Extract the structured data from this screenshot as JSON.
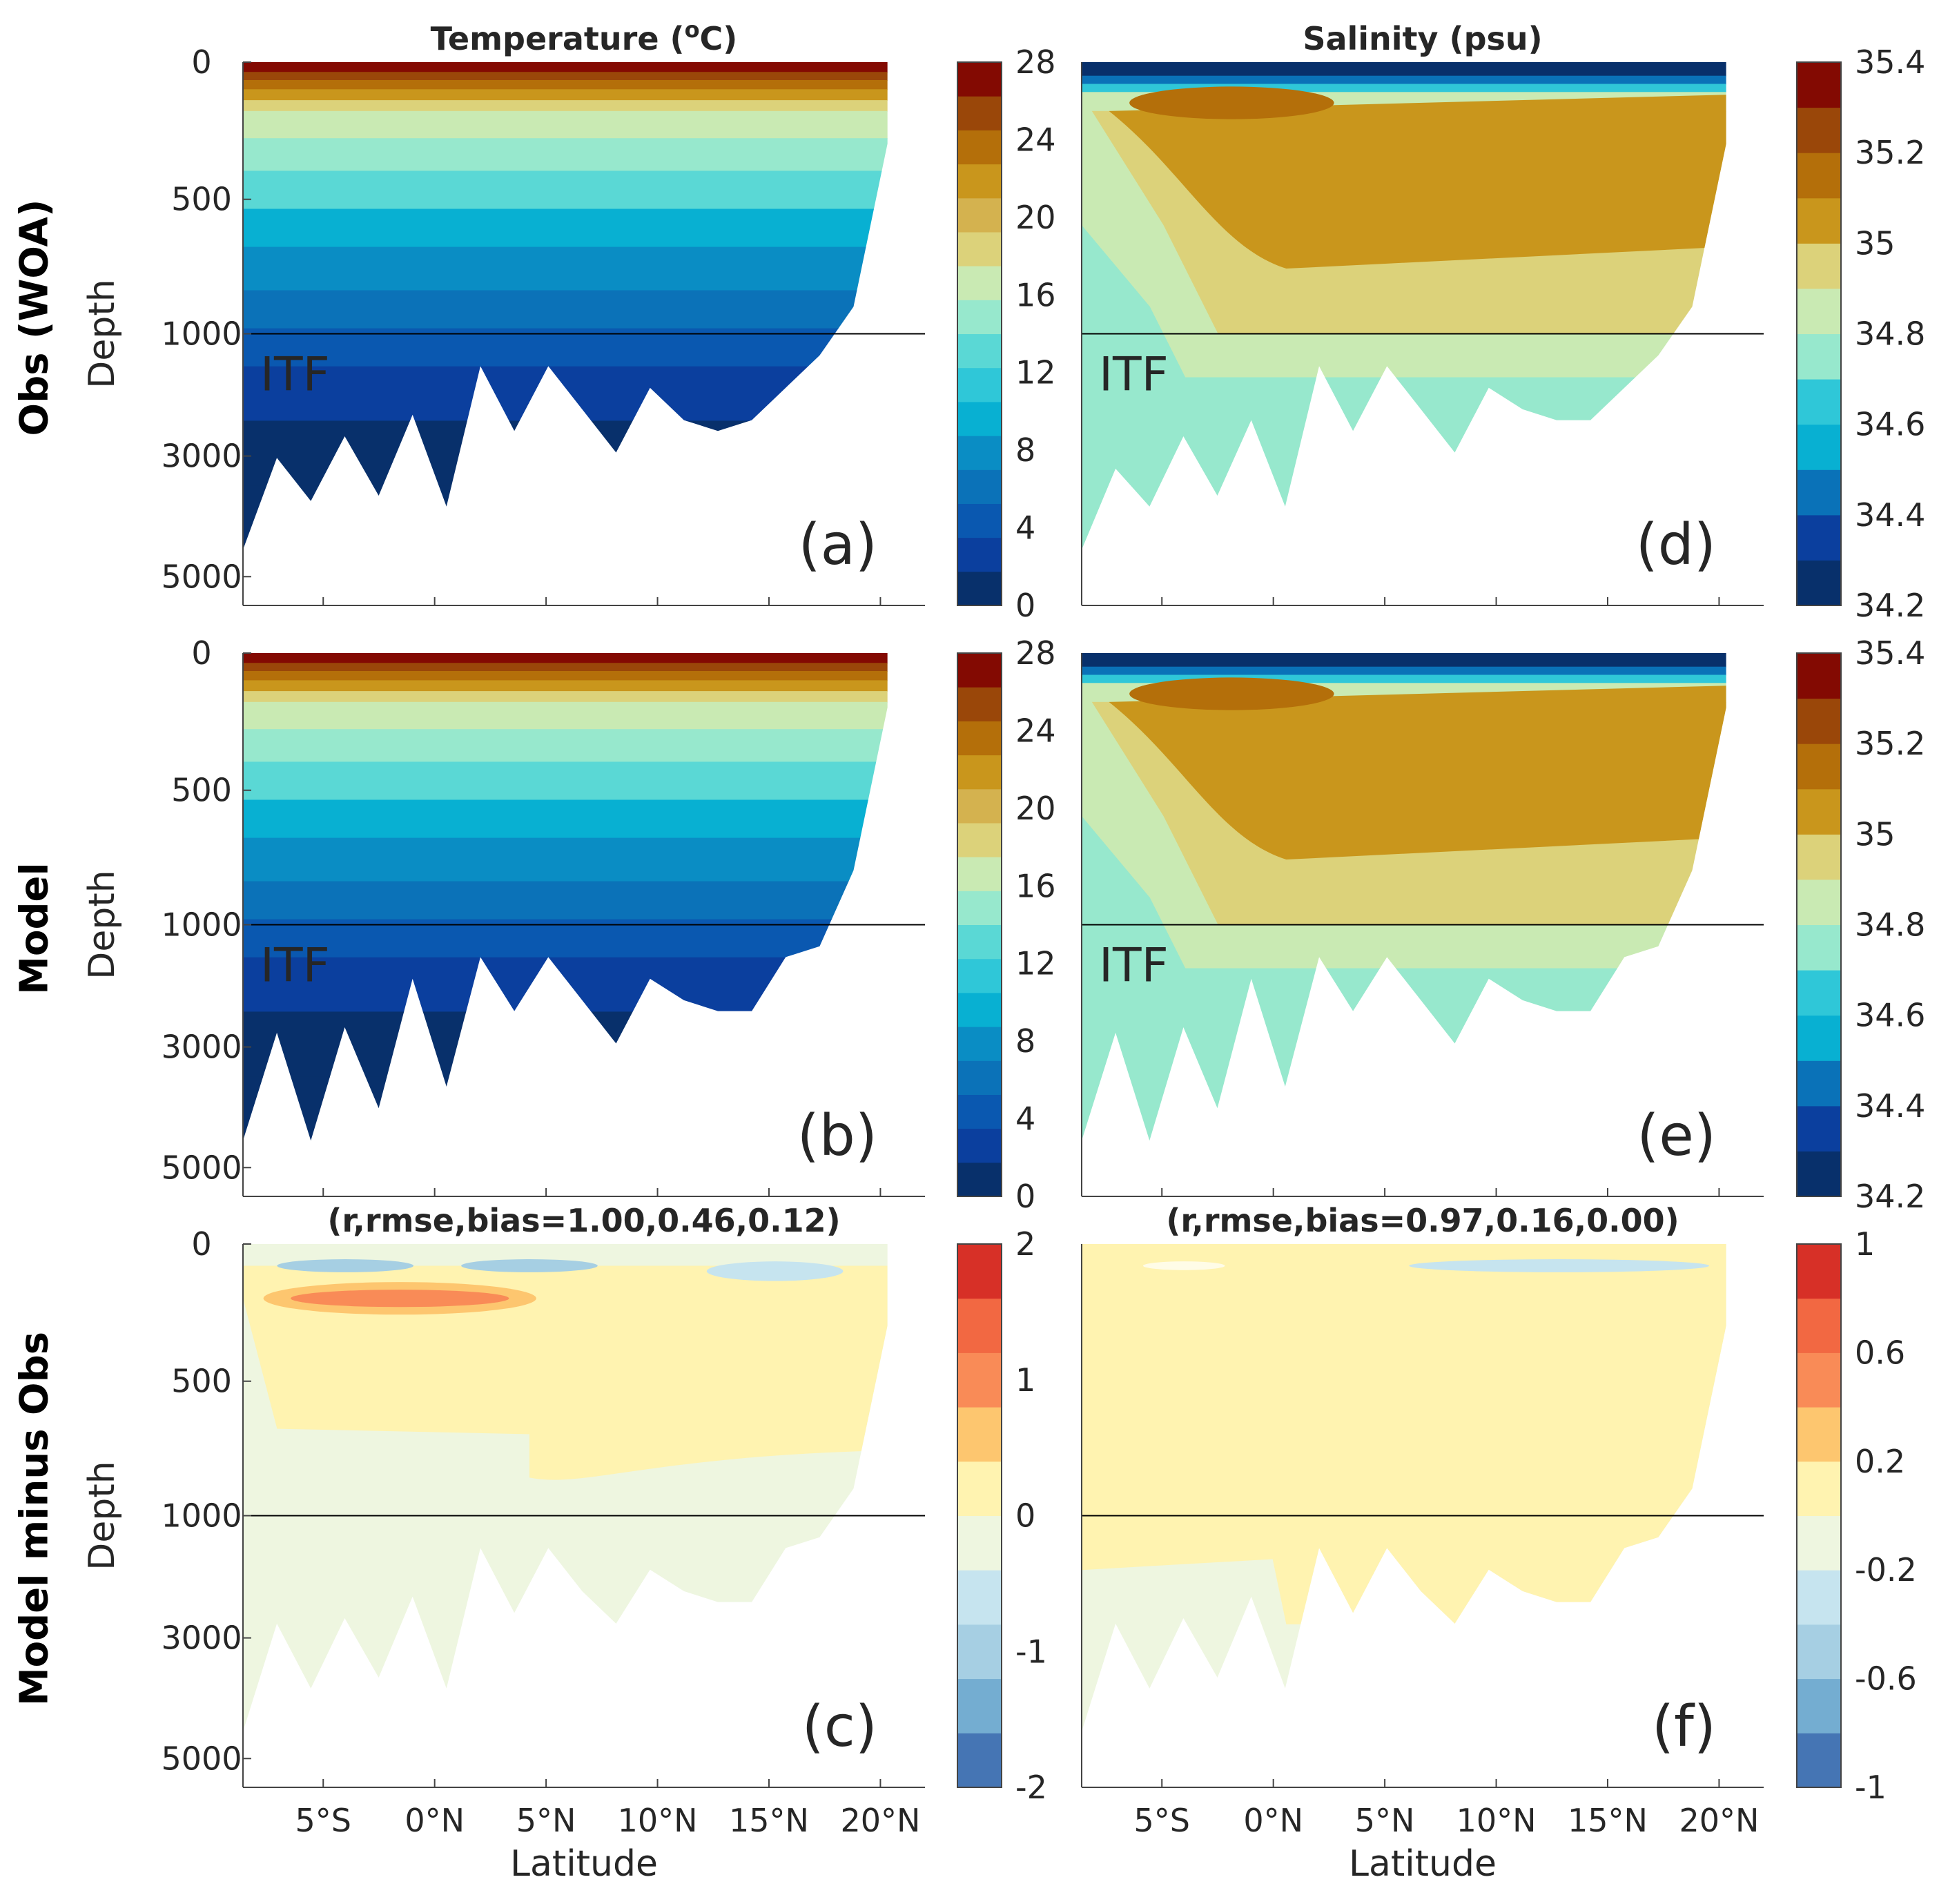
{
  "row_labels": [
    "Obs (WOA)",
    "Model",
    "Model minus Obs"
  ],
  "chart_data": [
    {
      "type": "heatmap",
      "id": "a",
      "panel_label": "(a)",
      "title": "Temperature (°C)",
      "title_base": "Temperature (",
      "title_sup": "o",
      "title_end": "C)",
      "ylabel": "Depth",
      "xlabel": "",
      "yticks": [
        "0",
        "500",
        "1000",
        "3000",
        "5000"
      ],
      "xticks": [],
      "annotation": "ITF",
      "colorbar": {
        "ticks": [
          "0",
          "4",
          "8",
          "12",
          "16",
          "20",
          "24",
          "28"
        ],
        "min": 0,
        "max": 28,
        "colors": [
          "#08306b",
          "#0b3f9e",
          "#0a58b0",
          "#0b72b8",
          "#0a8dc4",
          "#08b0d2",
          "#2fc7d8",
          "#5ad8d5",
          "#97e8cd",
          "#c9eab3",
          "#dcd27a",
          "#d4b24f",
          "#c9961c",
          "#b46f0a",
          "#9a4709",
          "#830a02"
        ]
      },
      "bottom_profile_km": [
        5.0,
        3.3,
        4.1,
        2.9,
        4.0,
        2.5,
        4.2,
        1.6,
        2.8,
        1.6,
        2.4,
        3.2,
        2.0,
        2.6,
        2.8,
        2.6,
        2.0,
        1.4,
        0.9,
        0.3
      ]
    },
    {
      "type": "heatmap",
      "id": "b",
      "panel_label": "(b)",
      "ylabel": "Depth",
      "xlabel": "",
      "yticks": [
        "0",
        "500",
        "1000",
        "3000",
        "5000"
      ],
      "xticks": [],
      "annotation": "ITF",
      "colorbar": {
        "ticks": [
          "0",
          "4",
          "8",
          "12",
          "16",
          "20",
          "24",
          "28"
        ],
        "min": 0,
        "max": 28
      },
      "bottom_profile_km": [
        5.0,
        3.0,
        5.0,
        2.9,
        4.4,
        2.0,
        4.0,
        1.6,
        2.6,
        1.6,
        2.4,
        3.2,
        2.0,
        2.4,
        2.6,
        2.6,
        1.6,
        1.4,
        0.8,
        0.2
      ]
    },
    {
      "type": "heatmap",
      "id": "c",
      "panel_label": "(c)",
      "title": "(r,rmse,bias=1.00,0.46,0.12)",
      "ylabel": "Depth",
      "xlabel": "Latitude",
      "yticks": [
        "0",
        "500",
        "1000",
        "3000",
        "5000"
      ],
      "xticks": [
        "5°S",
        "0°N",
        "5°N",
        "10°N",
        "15°N",
        "20°N"
      ],
      "stats": {
        "r": 1.0,
        "rmse": 0.46,
        "bias": 0.12
      },
      "colorbar": {
        "ticks": [
          "-2",
          "-1",
          "0",
          "1",
          "2"
        ],
        "min": -2,
        "max": 2,
        "colors": [
          "#4575b4",
          "#74add1",
          "#a6cfe3",
          "#c6e4ef",
          "#eef6e0",
          "#fff3b0",
          "#fdc66f",
          "#f98b57",
          "#f26842",
          "#d73027"
        ]
      },
      "bottom_profile_km": [
        5.0,
        3.0,
        4.2,
        2.9,
        4.0,
        2.5,
        4.2,
        1.6,
        2.8,
        1.6,
        2.4,
        3.0,
        2.0,
        2.4,
        2.6,
        2.6,
        1.6,
        1.4,
        0.9,
        0.3
      ]
    },
    {
      "type": "heatmap",
      "id": "d",
      "panel_label": "(d)",
      "title": "Salinity (psu)",
      "ylabel": "",
      "xlabel": "",
      "yticks": [],
      "xticks": [],
      "annotation": "ITF",
      "colorbar": {
        "ticks": [
          "34.2",
          "34.4",
          "34.6",
          "34.8",
          "35",
          "35.2",
          "35.4"
        ],
        "min": 34.2,
        "max": 35.4,
        "colors": [
          "#08306b",
          "#0b3f9e",
          "#0a72b8",
          "#08b0d2",
          "#2fc7d8",
          "#97e8cd",
          "#c9eab3",
          "#dcd27a",
          "#c9961c",
          "#b46f0a",
          "#9a4709",
          "#830a02"
        ]
      },
      "bottom_profile_km": [
        5.0,
        3.5,
        4.2,
        2.9,
        4.0,
        2.6,
        4.2,
        1.6,
        2.8,
        1.6,
        2.4,
        3.2,
        2.0,
        2.4,
        2.6,
        2.6,
        2.0,
        1.4,
        0.9,
        0.3
      ]
    },
    {
      "type": "heatmap",
      "id": "e",
      "panel_label": "(e)",
      "ylabel": "",
      "xlabel": "",
      "yticks": [],
      "xticks": [],
      "annotation": "ITF",
      "colorbar": {
        "ticks": [
          "34.2",
          "34.4",
          "34.6",
          "34.8",
          "35",
          "35.2",
          "35.4"
        ],
        "min": 34.2,
        "max": 35.4
      },
      "bottom_profile_km": [
        5.0,
        3.0,
        5.0,
        2.9,
        4.4,
        2.0,
        4.0,
        1.6,
        2.6,
        1.6,
        2.4,
        3.2,
        2.0,
        2.4,
        2.6,
        2.6,
        1.6,
        1.4,
        0.8,
        0.2
      ]
    },
    {
      "type": "heatmap",
      "id": "f",
      "panel_label": "(f)",
      "title": "(r,rmse,bias=0.97,0.16,0.00)",
      "ylabel": "",
      "xlabel": "Latitude",
      "yticks": [],
      "xticks": [
        "5°S",
        "0°N",
        "5°N",
        "10°N",
        "15°N",
        "20°N"
      ],
      "stats": {
        "r": 0.97,
        "rmse": 0.16,
        "bias": 0.0
      },
      "colorbar": {
        "ticks": [
          "-1",
          "-0.6",
          "-0.2",
          "0.2",
          "0.6",
          "1"
        ],
        "min": -1,
        "max": 1,
        "colors": [
          "#4575b4",
          "#74add1",
          "#a6cfe3",
          "#c6e4ef",
          "#eef6e0",
          "#fff3b0",
          "#fdc66f",
          "#f98b57",
          "#f26842",
          "#d73027"
        ]
      },
      "bottom_profile_km": [
        5.0,
        3.0,
        4.2,
        2.9,
        4.0,
        2.5,
        4.2,
        1.6,
        2.8,
        1.6,
        2.4,
        3.0,
        2.0,
        2.4,
        2.6,
        2.6,
        1.6,
        1.4,
        0.9,
        0.3
      ]
    }
  ]
}
